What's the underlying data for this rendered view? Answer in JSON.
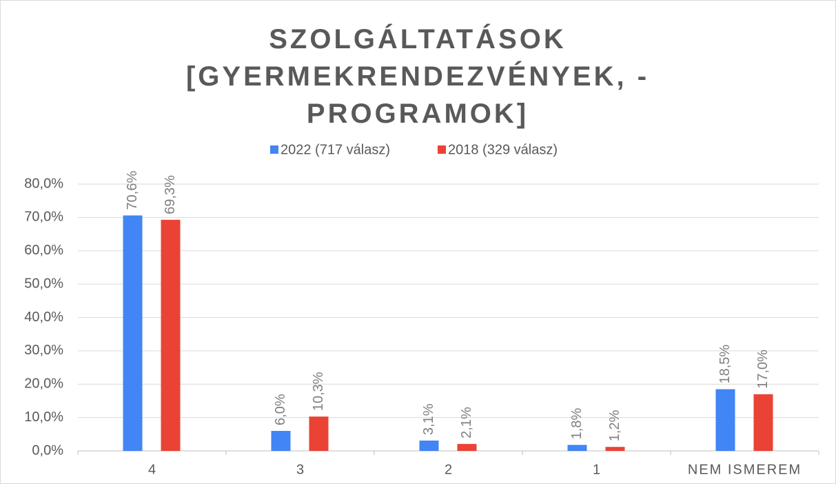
{
  "chart_data": {
    "type": "bar",
    "title": "SZOLGÁLTATÁSOK [GYERMEKRENDEZVÉNYEK, - PROGRAMOK]",
    "categories": [
      "4",
      "3",
      "2",
      "1",
      "NEM ISMEREM"
    ],
    "series": [
      {
        "name": "2022 (717 válasz)",
        "color": "#4285f4",
        "values": [
          70.6,
          6.0,
          3.1,
          1.8,
          18.5
        ],
        "value_labels": [
          "70,6%",
          "6,0%",
          "3,1%",
          "1,8%",
          "18,5%"
        ]
      },
      {
        "name": "2018 (329 válasz)",
        "color": "#ea4335",
        "values": [
          69.3,
          10.3,
          2.1,
          1.2,
          17.0
        ],
        "value_labels": [
          "69,3%",
          "10,3%",
          "2,1%",
          "1,2%",
          "17,0%"
        ]
      }
    ],
    "ylim": [
      0,
      80
    ],
    "yticks": [
      {
        "value": 0,
        "label": "0,0%"
      },
      {
        "value": 10,
        "label": "10,0%"
      },
      {
        "value": 20,
        "label": "20,0%"
      },
      {
        "value": 30,
        "label": "30,0%"
      },
      {
        "value": 40,
        "label": "40,0%"
      },
      {
        "value": 50,
        "label": "50,0%"
      },
      {
        "value": 60,
        "label": "60,0%"
      },
      {
        "value": 70,
        "label": "70,0%"
      },
      {
        "value": 80,
        "label": "80,0%"
      }
    ],
    "grid": true,
    "legend": "top"
  }
}
